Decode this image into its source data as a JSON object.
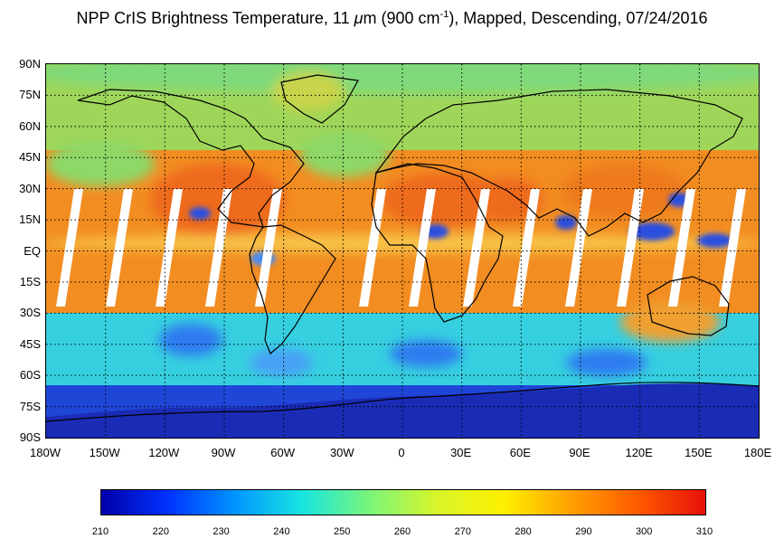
{
  "title": {
    "prefix": "NPP CrIS Brightness Temperature, 11 ",
    "mu": "μ",
    "unit_m": "m (900 cm",
    "sup": "-1",
    "suffix": "), Mapped, Descending, 07/24/2016"
  },
  "map": {
    "lat_labels": [
      "90N",
      "75N",
      "60N",
      "45N",
      "30N",
      "15N",
      "EQ",
      "15S",
      "30S",
      "45S",
      "60S",
      "75S",
      "90S"
    ],
    "lon_labels": [
      "180W",
      "150W",
      "120W",
      "90W",
      "60W",
      "30W",
      "0",
      "30E",
      "60E",
      "90E",
      "120E",
      "150E",
      "180E"
    ],
    "colors": {
      "warm": "#f28d22",
      "hot": "#ee6a1a",
      "mid": "#a6e05a",
      "cool": "#2fd5c6",
      "cold": "#2a5be6",
      "coldest": "#1a2bb5"
    }
  },
  "colorbar": {
    "ticks": [
      "210",
      "220",
      "230",
      "240",
      "250",
      "260",
      "270",
      "280",
      "290",
      "300",
      "310"
    ],
    "min": 210,
    "max": 310,
    "stops": [
      "#0000a8",
      "#0032ff",
      "#0096ff",
      "#18e5e0",
      "#7af57a",
      "#d8f52a",
      "#fff000",
      "#ffa000",
      "#ff5a00",
      "#e8100a"
    ]
  }
}
